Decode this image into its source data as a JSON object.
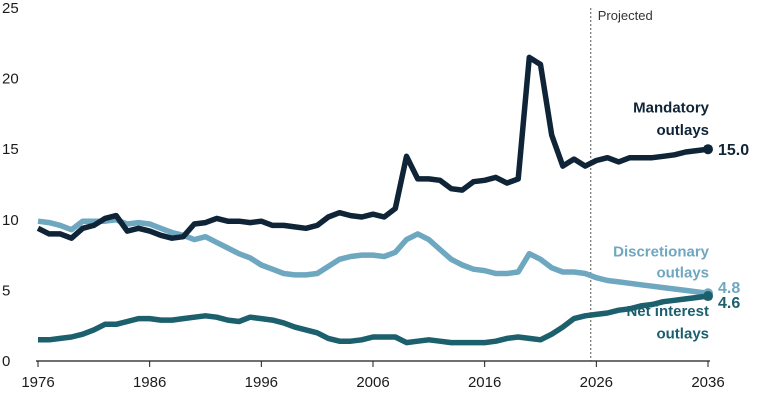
{
  "chart_data": {
    "type": "line",
    "title": "",
    "xlabel": "",
    "ylabel": "",
    "xlim": [
      1976,
      2036
    ],
    "ylim": [
      0,
      25
    ],
    "x_ticks": [
      "1976",
      "1986",
      "1996",
      "2006",
      "2016",
      "2026",
      "2036"
    ],
    "y_ticks": [
      "0",
      "5",
      "10",
      "15",
      "20",
      "25"
    ],
    "grid": false,
    "projected_label": "Projected",
    "projected_start": 2025.5,
    "x": [
      1976,
      1977,
      1978,
      1979,
      1980,
      1981,
      1982,
      1983,
      1984,
      1985,
      1986,
      1987,
      1988,
      1989,
      1990,
      1991,
      1992,
      1993,
      1994,
      1995,
      1996,
      1997,
      1998,
      1999,
      2000,
      2001,
      2002,
      2003,
      2004,
      2005,
      2006,
      2007,
      2008,
      2009,
      2010,
      2011,
      2012,
      2013,
      2014,
      2015,
      2016,
      2017,
      2018,
      2019,
      2020,
      2021,
      2022,
      2023,
      2024,
      2025,
      2026,
      2027,
      2028,
      2029,
      2030,
      2031,
      2032,
      2033,
      2034,
      2035,
      2036
    ],
    "series": [
      {
        "name": "Mandatory outlays",
        "label_lines": [
          "Mandatory",
          "outlays"
        ],
        "end_label": "15.0",
        "color": "#0f2436",
        "values": [
          9.4,
          9.0,
          9.0,
          8.7,
          9.4,
          9.6,
          10.1,
          10.3,
          9.2,
          9.4,
          9.2,
          8.9,
          8.7,
          8.8,
          9.7,
          9.8,
          10.1,
          9.9,
          9.9,
          9.8,
          9.9,
          9.6,
          9.6,
          9.5,
          9.4,
          9.6,
          10.2,
          10.5,
          10.3,
          10.2,
          10.4,
          10.2,
          10.8,
          14.5,
          12.9,
          12.9,
          12.8,
          12.2,
          12.1,
          12.7,
          12.8,
          13.0,
          12.6,
          12.9,
          21.5,
          21.0,
          16.0,
          13.8,
          14.3,
          13.8,
          14.2,
          14.4,
          14.1,
          14.4,
          14.4,
          14.4,
          14.5,
          14.6,
          14.8,
          14.9,
          15.0
        ]
      },
      {
        "name": "Discretionary outlays",
        "label_lines": [
          "Discretionary",
          "outlays"
        ],
        "end_label": "4.8",
        "color": "#6ea7c0",
        "values": [
          9.9,
          9.8,
          9.6,
          9.3,
          9.9,
          9.9,
          9.9,
          10.0,
          9.7,
          9.8,
          9.7,
          9.4,
          9.1,
          8.9,
          8.6,
          8.8,
          8.4,
          8.0,
          7.6,
          7.3,
          6.8,
          6.5,
          6.2,
          6.1,
          6.1,
          6.2,
          6.7,
          7.2,
          7.4,
          7.5,
          7.5,
          7.4,
          7.7,
          8.6,
          9.0,
          8.6,
          7.9,
          7.2,
          6.8,
          6.5,
          6.4,
          6.2,
          6.2,
          6.3,
          7.6,
          7.2,
          6.6,
          6.3,
          6.3,
          6.2,
          5.9,
          5.7,
          5.6,
          5.5,
          5.4,
          5.3,
          5.2,
          5.1,
          5.0,
          4.9,
          4.8
        ]
      },
      {
        "name": "Net interest outlays",
        "label_lines": [
          "Net interest",
          "outlays"
        ],
        "end_label": "4.6",
        "color": "#1c5f6d",
        "values": [
          1.5,
          1.5,
          1.6,
          1.7,
          1.9,
          2.2,
          2.6,
          2.6,
          2.8,
          3.0,
          3.0,
          2.9,
          2.9,
          3.0,
          3.1,
          3.2,
          3.1,
          2.9,
          2.8,
          3.1,
          3.0,
          2.9,
          2.7,
          2.4,
          2.2,
          2.0,
          1.6,
          1.4,
          1.4,
          1.5,
          1.7,
          1.7,
          1.7,
          1.3,
          1.4,
          1.5,
          1.4,
          1.3,
          1.3,
          1.3,
          1.3,
          1.4,
          1.6,
          1.7,
          1.6,
          1.5,
          1.9,
          2.4,
          3.0,
          3.2,
          3.3,
          3.4,
          3.6,
          3.7,
          3.9,
          4.0,
          4.2,
          4.3,
          4.4,
          4.5,
          4.6
        ]
      }
    ]
  }
}
